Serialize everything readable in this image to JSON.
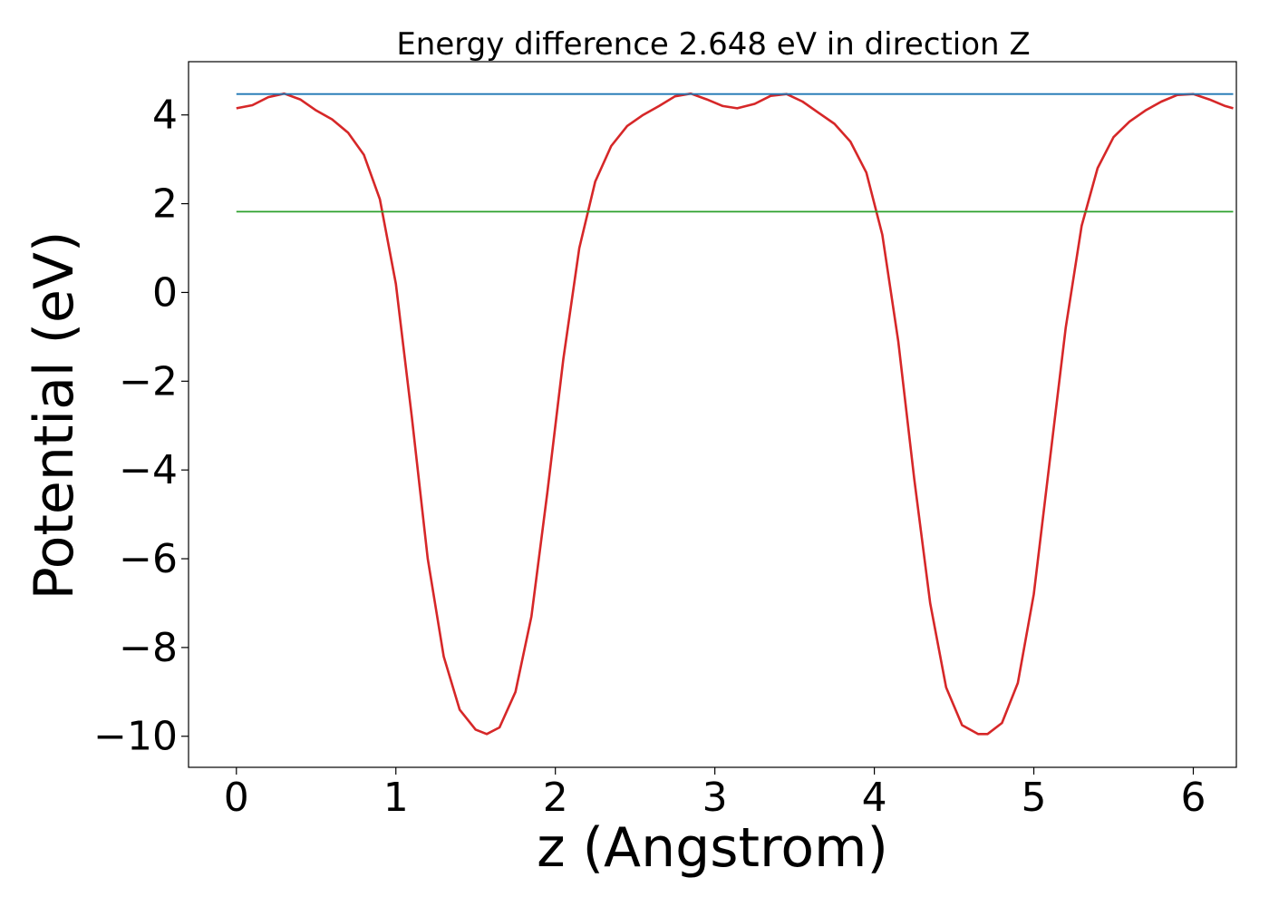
{
  "chart_data": {
    "type": "line",
    "title": "Energy difference 2.648 eV in direction Z",
    "xlabel": "z (Angstrom)",
    "ylabel": "Potential (eV)",
    "xlim": [
      -0.3,
      6.27
    ],
    "ylim": [
      -10.7,
      5.2
    ],
    "x_ticks": [
      0,
      1,
      2,
      3,
      4,
      5,
      6
    ],
    "y_ticks": [
      4,
      2,
      0,
      -2,
      -4,
      -6,
      -8,
      -10
    ],
    "x_tick_labels": [
      "0",
      "1",
      "2",
      "3",
      "4",
      "5",
      "6"
    ],
    "y_tick_labels": [
      "4",
      "2",
      "0",
      "−2",
      "−4",
      "−6",
      "−8",
      "−10"
    ],
    "grid": false,
    "series": [
      {
        "color": "#d62728",
        "x": [
          0.0,
          0.1,
          0.2,
          0.3,
          0.4,
          0.5,
          0.6,
          0.7,
          0.8,
          0.9,
          1.0,
          1.1,
          1.2,
          1.3,
          1.4,
          1.5,
          1.57,
          1.65,
          1.75,
          1.85,
          1.95,
          2.05,
          2.15,
          2.25,
          2.35,
          2.45,
          2.55,
          2.65,
          2.75,
          2.85,
          2.95,
          3.05,
          3.14,
          3.25,
          3.35,
          3.45,
          3.55,
          3.65,
          3.75,
          3.85,
          3.95,
          4.05,
          4.15,
          4.25,
          4.35,
          4.45,
          4.55,
          4.65,
          4.71,
          4.8,
          4.9,
          5.0,
          5.1,
          5.2,
          5.3,
          5.4,
          5.5,
          5.6,
          5.7,
          5.8,
          5.9,
          6.0,
          6.1,
          6.2,
          6.25
        ],
        "y": [
          4.15,
          4.22,
          4.4,
          4.48,
          4.35,
          4.1,
          3.9,
          3.6,
          3.1,
          2.1,
          0.2,
          -2.8,
          -6.0,
          -8.2,
          -9.4,
          -9.85,
          -9.95,
          -9.8,
          -9.0,
          -7.3,
          -4.5,
          -1.5,
          1.0,
          2.5,
          3.3,
          3.75,
          4.0,
          4.2,
          4.42,
          4.48,
          4.35,
          4.2,
          4.15,
          4.25,
          4.43,
          4.47,
          4.3,
          4.05,
          3.8,
          3.4,
          2.7,
          1.3,
          -1.1,
          -4.2,
          -7.0,
          -8.9,
          -9.75,
          -9.95,
          -9.95,
          -9.7,
          -8.8,
          -6.8,
          -3.8,
          -0.8,
          1.5,
          2.8,
          3.5,
          3.85,
          4.1,
          4.3,
          4.45,
          4.47,
          4.35,
          4.2,
          4.15
        ]
      },
      {
        "color": "#1f77b4",
        "x": [
          0,
          6.25
        ],
        "y": [
          4.47,
          4.47
        ]
      },
      {
        "color": "#2ca02c",
        "x": [
          0,
          6.25
        ],
        "y": [
          1.82,
          1.82
        ]
      }
    ]
  }
}
